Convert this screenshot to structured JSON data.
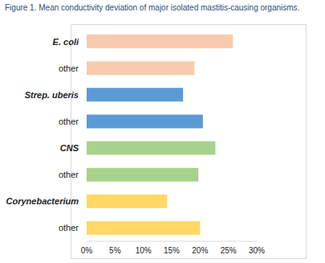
{
  "chart_data": {
    "type": "bar",
    "title": "Figure 1. Mean conductivity deviation of major isolated mastitis-causing organisms.",
    "orientation": "horizontal",
    "categories": [
      "E. coli",
      "other",
      "Strep. uberis",
      "other",
      "CNS",
      "other",
      "Corynebacterium",
      "other"
    ],
    "values": [
      25.8,
      19.0,
      17.0,
      20.5,
      22.7,
      19.7,
      14.2,
      20.0
    ],
    "colors": [
      "#f8cbad",
      "#f8cbad",
      "#5b9bd5",
      "#5b9bd5",
      "#a9d18e",
      "#a9d18e",
      "#ffd966",
      "#ffd966"
    ],
    "xlim": [
      0,
      30
    ],
    "xticks": [
      {
        "value": 0,
        "label": "0%"
      },
      {
        "value": 5,
        "label": "5%"
      },
      {
        "value": 10,
        "label": "10%"
      },
      {
        "value": 15,
        "label": "15%"
      },
      {
        "value": 20,
        "label": "20%"
      },
      {
        "value": 25,
        "label": "25%"
      },
      {
        "value": 30,
        "label": "30%"
      }
    ],
    "grid": false
  }
}
